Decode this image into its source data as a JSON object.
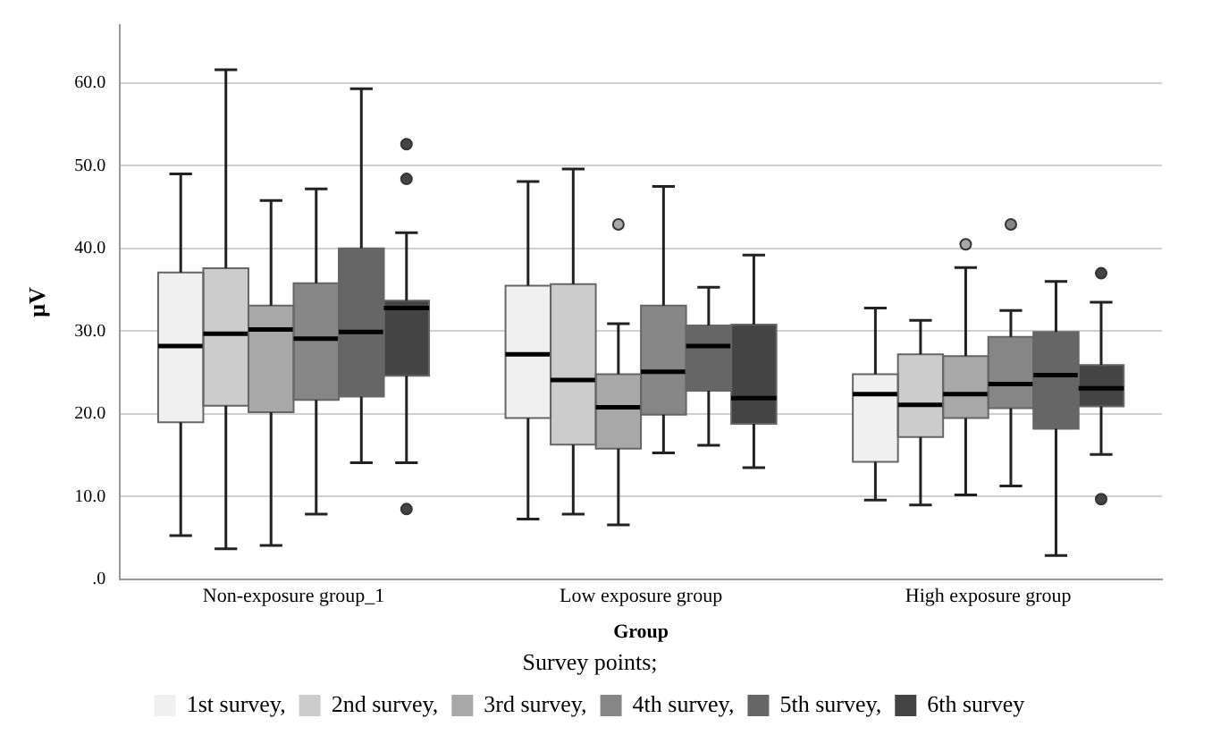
{
  "chart_data": {
    "type": "box",
    "xlabel": "Group",
    "ylabel": "μV",
    "legend_title": "Survey points;",
    "legend": "bottom",
    "grid": "y",
    "categories": [
      "Non-exposure group_1",
      "Low exposure group",
      "High exposure group"
    ],
    "ylim": [
      0,
      67
    ],
    "yticks": [
      {
        "value": 0,
        "label": ".0"
      },
      {
        "value": 10,
        "label": "10.0"
      },
      {
        "value": 20,
        "label": "20.0"
      },
      {
        "value": 30,
        "label": "30.0"
      },
      {
        "value": 40,
        "label": "40.0"
      },
      {
        "value": 50,
        "label": "50.0"
      },
      {
        "value": 60,
        "label": "60.0"
      }
    ],
    "series": [
      {
        "name": "1st survey,",
        "color": "#f0f0f0",
        "boxes": [
          {
            "low": 5.3,
            "q1": 19.0,
            "median": 28.2,
            "q3": 37.1,
            "high": 49.0
          },
          {
            "low": 7.3,
            "q1": 19.5,
            "median": 27.2,
            "q3": 35.5,
            "high": 48.1
          },
          {
            "low": 9.6,
            "q1": 14.2,
            "median": 22.4,
            "q3": 24.8,
            "high": 32.8
          }
        ]
      },
      {
        "name": "2nd survey,",
        "color": "#cccccc",
        "boxes": [
          {
            "low": 3.7,
            "q1": 21.0,
            "median": 29.7,
            "q3": 37.6,
            "high": 61.6
          },
          {
            "low": 7.9,
            "q1": 16.3,
            "median": 24.1,
            "q3": 35.7,
            "high": 49.6
          },
          {
            "low": 9.0,
            "q1": 17.2,
            "median": 21.1,
            "q3": 27.2,
            "high": 31.3
          }
        ]
      },
      {
        "name": "3rd survey,",
        "color": "#a8a8a8",
        "boxes": [
          {
            "low": 4.1,
            "q1": 20.2,
            "median": 30.2,
            "q3": 33.1,
            "high": 45.8
          },
          {
            "low": 6.6,
            "q1": 15.8,
            "median": 20.8,
            "q3": 24.8,
            "high": 30.9,
            "outliers": [
              42.9
            ]
          },
          {
            "low": 10.2,
            "q1": 19.5,
            "median": 22.4,
            "q3": 27.0,
            "high": 37.7,
            "outliers": [
              40.5
            ]
          }
        ]
      },
      {
        "name": "4th survey,",
        "color": "#868686",
        "boxes": [
          {
            "low": 7.9,
            "q1": 21.7,
            "median": 29.1,
            "q3": 35.8,
            "high": 47.2
          },
          {
            "low": 15.3,
            "q1": 19.9,
            "median": 25.1,
            "q3": 33.1,
            "high": 47.5
          },
          {
            "low": 11.3,
            "q1": 20.7,
            "median": 23.6,
            "q3": 29.3,
            "high": 32.5,
            "outliers": [
              42.9
            ]
          }
        ]
      },
      {
        "name": "5th survey,",
        "color": "#666666",
        "boxes": [
          {
            "low": 14.1,
            "q1": 22.1,
            "median": 29.9,
            "q3": 40.0,
            "high": 59.3
          },
          {
            "low": 16.2,
            "q1": 22.8,
            "median": 28.2,
            "q3": 30.7,
            "high": 35.3
          },
          {
            "low": 2.9,
            "q1": 18.2,
            "median": 24.7,
            "q3": 29.9,
            "high": 36.0
          }
        ]
      },
      {
        "name": "6th survey",
        "color": "#444444",
        "boxes": [
          {
            "low": 14.1,
            "q1": 24.6,
            "median": 32.8,
            "q3": 33.7,
            "high": 41.9,
            "outliers": [
              52.6,
              48.4,
              8.5
            ]
          },
          {
            "low": 13.5,
            "q1": 18.8,
            "median": 21.9,
            "q3": 30.8,
            "high": 39.2
          },
          {
            "low": 15.1,
            "q1": 20.9,
            "median": 23.1,
            "q3": 25.9,
            "high": 33.5,
            "outliers": [
              37.0,
              9.7
            ]
          }
        ]
      }
    ]
  }
}
